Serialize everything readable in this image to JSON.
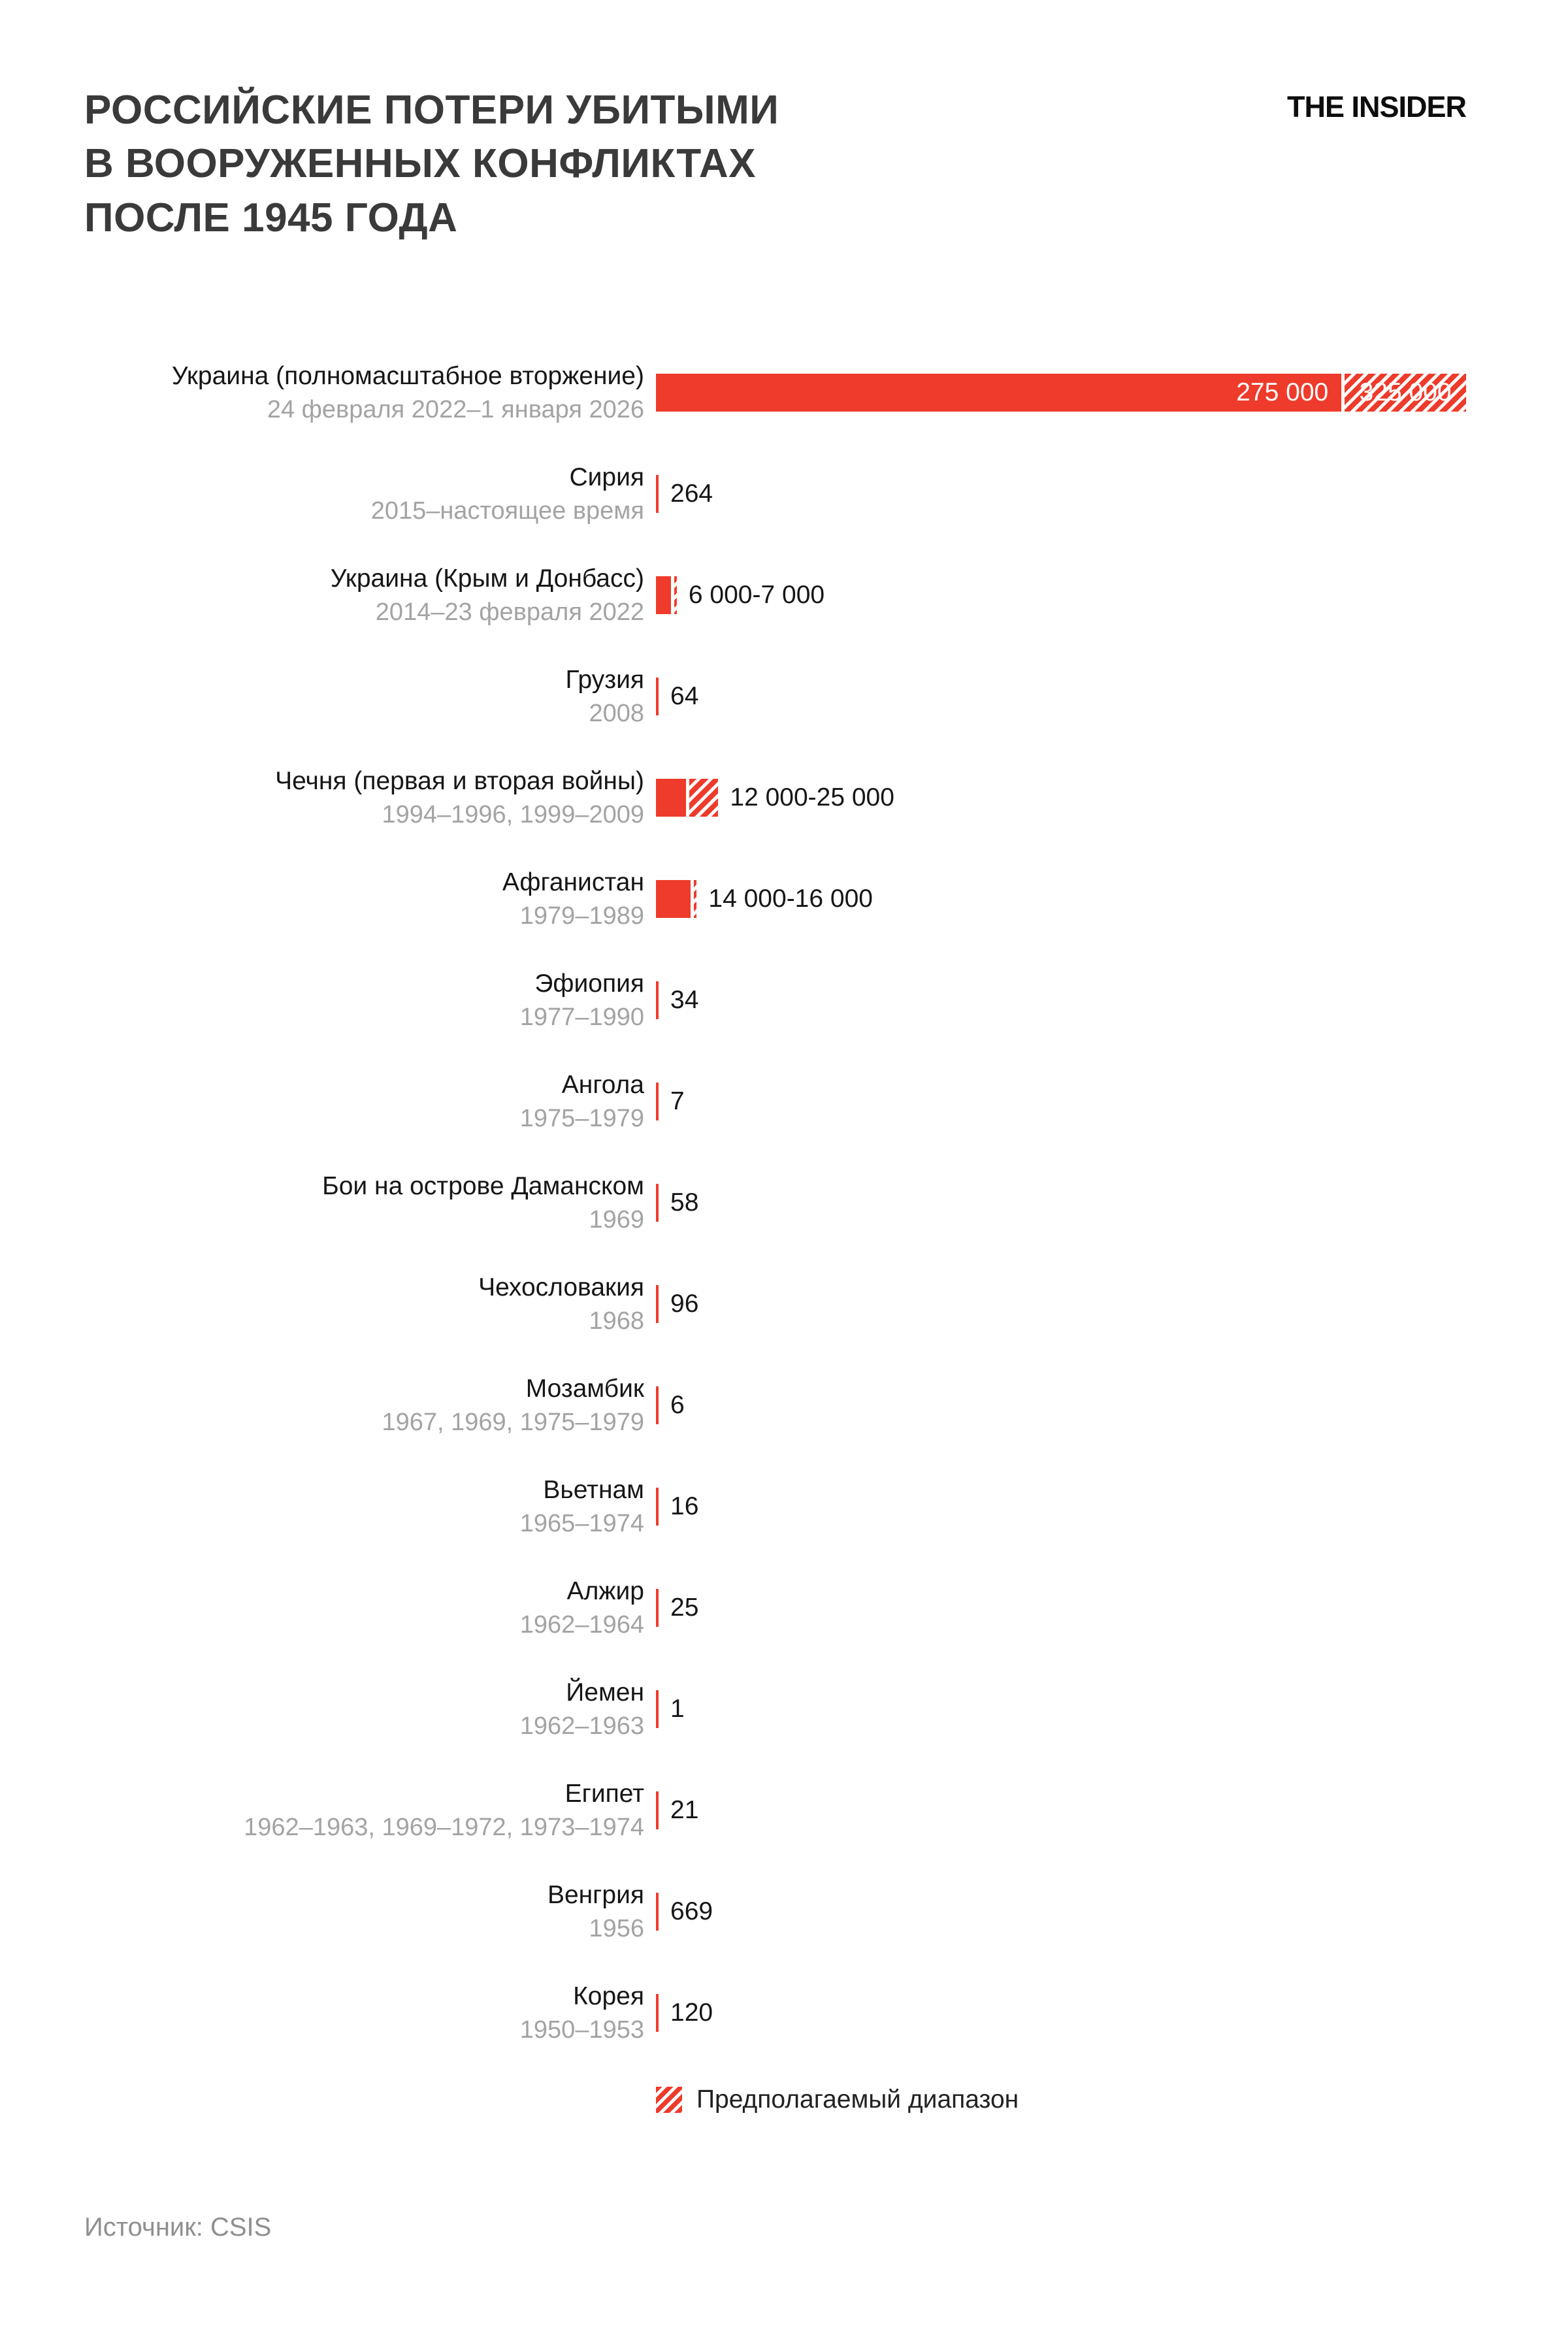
{
  "header": {
    "title_lines": [
      "РОССИЙСКИЕ ПОТЕРИ УБИТЫМИ",
      "В ВООРУЖЕННЫХ КОНФЛИКТАХ",
      "ПОСЛЕ 1945 ГОДА"
    ],
    "brand": "THE INSIDER"
  },
  "legend": {
    "label": "Предполагаемый диапазон"
  },
  "source": "Источник: CSIS",
  "colors": {
    "bar": "#ee3b2b",
    "title": "#3a3a3a",
    "label": "#161616",
    "dates": "#a3a3a3",
    "source": "#8f8f8f"
  },
  "chart_data": {
    "type": "bar",
    "orientation": "horizontal",
    "title": "Российские потери убитыми в вооруженных конфликтах после 1945 года",
    "legend_estimated_range": "Предполагаемый диапазон",
    "source": "Источник: CSIS",
    "max_value": 325000,
    "rows": [
      {
        "label": "Украина (полномасштабное вторжение)",
        "dates": "24 февраля 2022–1 января 2026",
        "value_min": 275000,
        "value_max": 325000,
        "value_label_min": "275 000",
        "value_label_max": "325 000",
        "range": true,
        "labels_inside": true
      },
      {
        "label": "Сирия",
        "dates": "2015–настоящее время",
        "value": 264,
        "value_label": "264"
      },
      {
        "label": "Украина (Крым и Донбасс)",
        "dates": "2014–23 февраля 2022",
        "value_min": 6000,
        "value_max": 7000,
        "value_label": "6 000-7 000",
        "range": true
      },
      {
        "label": "Грузия",
        "dates": "2008",
        "value": 64,
        "value_label": "64"
      },
      {
        "label": "Чечня (первая и вторая войны)",
        "dates": "1994–1996, 1999–2009",
        "value_min": 12000,
        "value_max": 25000,
        "value_label": "12 000-25 000",
        "range": true
      },
      {
        "label": "Афганистан",
        "dates": "1979–1989",
        "value_min": 14000,
        "value_max": 16000,
        "value_label": "14 000-16 000",
        "range": true
      },
      {
        "label": "Эфиопия",
        "dates": "1977–1990",
        "value": 34,
        "value_label": "34"
      },
      {
        "label": "Ангола",
        "dates": "1975–1979",
        "value": 7,
        "value_label": "7"
      },
      {
        "label": "Бои на острове Даманском",
        "dates": "1969",
        "value": 58,
        "value_label": "58"
      },
      {
        "label": "Чехословакия",
        "dates": "1968",
        "value": 96,
        "value_label": "96"
      },
      {
        "label": "Мозамбик",
        "dates": "1967, 1969, 1975–1979",
        "value": 6,
        "value_label": "6"
      },
      {
        "label": "Вьетнам",
        "dates": "1965–1974",
        "value": 16,
        "value_label": "16"
      },
      {
        "label": "Алжир",
        "dates": "1962–1964",
        "value": 25,
        "value_label": "25"
      },
      {
        "label": "Йемен",
        "dates": "1962–1963",
        "value": 1,
        "value_label": "1"
      },
      {
        "label": "Египет",
        "dates": "1962–1963, 1969–1972, 1973–1974",
        "value": 21,
        "value_label": "21"
      },
      {
        "label": "Венгрия",
        "dates": "1956",
        "value": 669,
        "value_label": "669"
      },
      {
        "label": "Корея",
        "dates": "1950–1953",
        "value": 120,
        "value_label": "120"
      }
    ]
  }
}
